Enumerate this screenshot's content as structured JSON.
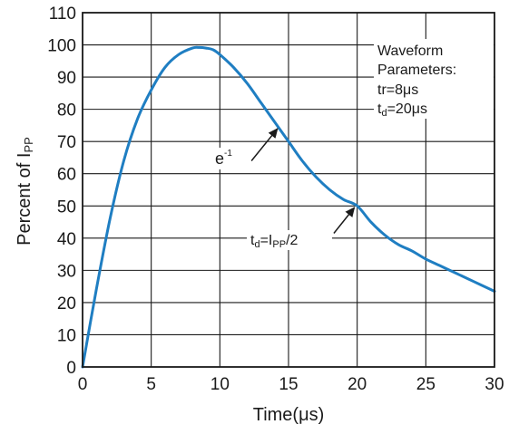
{
  "chart_data": {
    "type": "line",
    "xlabel": "Time(μs)",
    "ylabel": {
      "prefix": "Percent of I",
      "subscript": "PP"
    },
    "xlim": [
      0,
      30
    ],
    "ylim": [
      0,
      110
    ],
    "x_ticks": [
      0,
      5,
      10,
      15,
      20,
      25,
      30
    ],
    "y_ticks": [
      0,
      10,
      20,
      30,
      40,
      50,
      60,
      70,
      80,
      90,
      100,
      110
    ],
    "grid": true,
    "series": [
      {
        "color": "#1f7ec2",
        "x": [
          0,
          1,
          2,
          3,
          4,
          5,
          6,
          7,
          8,
          8.5,
          9,
          9.5,
          10,
          11,
          12,
          13,
          14,
          15,
          16,
          17,
          18,
          19,
          20,
          21,
          22,
          23,
          24,
          25,
          26,
          27,
          28,
          29,
          30
        ],
        "y": [
          0,
          24,
          46,
          64,
          77,
          86,
          93,
          97,
          99,
          99.2,
          99,
          98.5,
          97,
          93,
          88,
          82,
          76,
          70,
          64,
          59,
          55,
          52,
          50,
          45,
          41,
          38,
          36,
          33.5,
          31.5,
          29.5,
          27.5,
          25.5,
          23.5
        ]
      }
    ],
    "annotations": [
      {
        "label_main": "e",
        "label_super": "-1",
        "arrow_from": [
          12.3,
          64
        ],
        "arrow_to": [
          14.2,
          74
        ]
      },
      {
        "label_parts": [
          "t",
          "d",
          "=I",
          "PP",
          "/2"
        ],
        "arrow_from": [
          18.3,
          41.5
        ],
        "arrow_to": [
          19.8,
          49.5
        ]
      }
    ],
    "parameters_box": {
      "line1": "Waveform",
      "line2": "Parameters:",
      "tr_prefix": "tr=",
      "tr_value": "8μs",
      "td_prefix": "t",
      "td_sub": "d",
      "td_value": "=20μs"
    }
  }
}
